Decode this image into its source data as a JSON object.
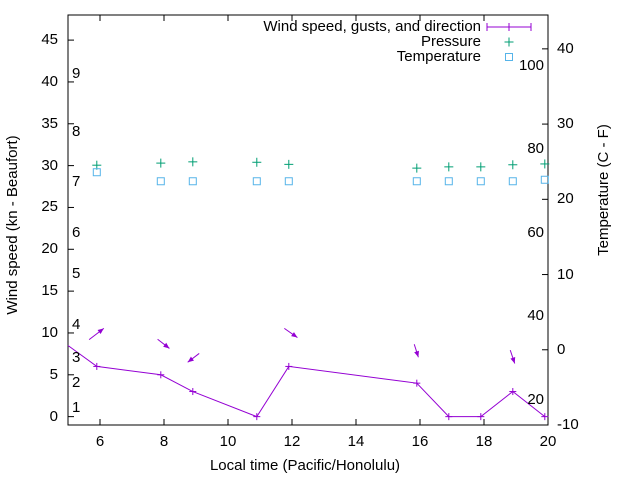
{
  "legend": {
    "items": [
      {
        "label": "Wind speed, gusts, and direction",
        "color": "#9400D3",
        "sample": "errorbar-line-plus"
      },
      {
        "label": "Pressure",
        "color": "#009E73",
        "sample": "plus"
      },
      {
        "label": "Temperature",
        "color": "#56B4E9",
        "sample": "open-square"
      }
    ]
  },
  "axes": {
    "x": {
      "label": "Local time (Pacific/Honolulu)",
      "range": [
        5,
        20
      ],
      "ticks": [
        6,
        8,
        10,
        12,
        14,
        16,
        18,
        20
      ]
    },
    "y_left": {
      "label": "Wind speed (kn - Beaufort)",
      "range_kn": [
        -1,
        48
      ],
      "ticks_kn": [
        0,
        5,
        10,
        15,
        20,
        25,
        30,
        35,
        40,
        45
      ],
      "beaufort_labels": [
        {
          "b": "1",
          "kn": 1
        },
        {
          "b": "2",
          "kn": 4
        },
        {
          "b": "3",
          "kn": 7
        },
        {
          "b": "4",
          "kn": 11
        },
        {
          "b": "5",
          "kn": 17
        },
        {
          "b": "6",
          "kn": 22
        },
        {
          "b": "7",
          "kn": 28
        },
        {
          "b": "8",
          "kn": 34
        },
        {
          "b": "9",
          "kn": 41
        }
      ]
    },
    "y_right": {
      "label": "Temperature (C - F)",
      "range_c": [
        -10,
        44.5
      ],
      "ticks_c": [
        -10,
        0,
        10,
        20,
        30,
        40
      ],
      "fahrenheit_labels": [
        20,
        40,
        60,
        80,
        100
      ]
    }
  },
  "chart_data": {
    "type": "line",
    "title": "",
    "x_times": [
      5.9,
      7.9,
      8.9,
      10.9,
      11.9,
      15.9,
      16.9,
      17.9,
      18.9,
      19.9
    ],
    "series": [
      {
        "name": "Wind speed, gusts, and direction",
        "axis": "left",
        "units": "kn",
        "color": "#9400D3",
        "style": "line-with-plus-markers",
        "leading_edge_point": {
          "x": 5.0,
          "y": 8.5
        },
        "values": [
          6,
          5,
          3,
          0,
          6,
          4,
          0,
          0,
          3,
          0
        ]
      },
      {
        "name": "Pressure",
        "axis": "left",
        "units": "inHg",
        "color": "#009E73",
        "style": "plus-markers",
        "values": [
          30.05,
          30.3,
          30.45,
          30.4,
          30.15,
          29.7,
          29.85,
          29.85,
          30.1,
          30.2
        ]
      },
      {
        "name": "Temperature",
        "axis": "right",
        "units": "C",
        "color": "#56B4E9",
        "style": "open-square-markers",
        "values": [
          23.6,
          22.4,
          22.4,
          22.4,
          22.4,
          22.4,
          22.4,
          22.4,
          22.4,
          22.6
        ]
      }
    ],
    "wind_direction_arrows": [
      {
        "from": [
          5.66,
          9.2
        ],
        "to": [
          6.12,
          10.55
        ]
      },
      {
        "from": [
          7.8,
          9.25
        ],
        "to": [
          8.17,
          8.15
        ]
      },
      {
        "from": [
          9.1,
          7.55
        ],
        "to": [
          8.74,
          6.5
        ]
      },
      {
        "from": [
          11.76,
          10.55
        ],
        "to": [
          12.17,
          9.45
        ]
      },
      {
        "from": [
          15.82,
          8.65
        ],
        "to": [
          15.95,
          7.1
        ]
      },
      {
        "from": [
          18.82,
          7.95
        ],
        "to": [
          18.96,
          6.35
        ]
      }
    ],
    "grid": false,
    "legend_position": "top-right-inside"
  }
}
